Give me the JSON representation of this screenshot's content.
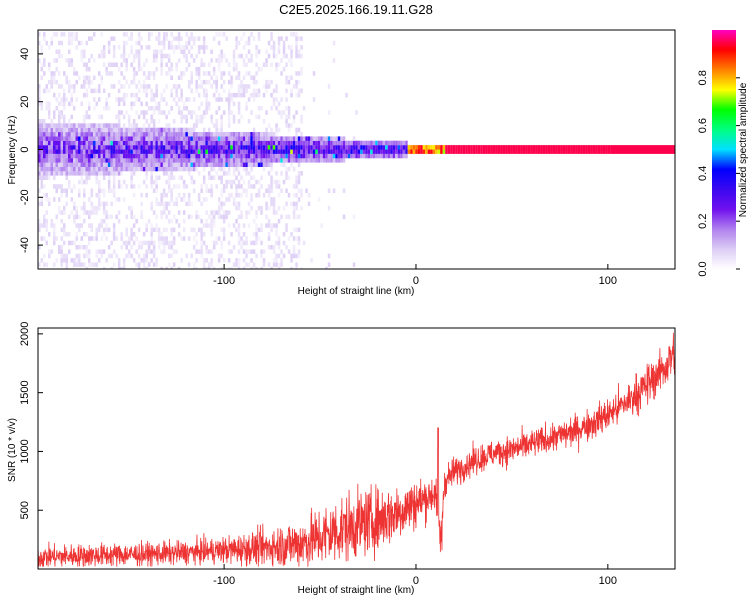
{
  "figure": {
    "title": "C2E5.2025.166.19.11.G28"
  },
  "colors": {
    "snr_line": "#ee3333",
    "axis": "#000000",
    "heat_background": "#ffffff",
    "colormap": [
      "#ffffff",
      "#dccdf5",
      "#b080ee",
      "#7010ee",
      "#3a08f0",
      "#0000ff",
      "#00e0ff",
      "#00ff80",
      "#00ff00",
      "#ffff00",
      "#ff8000",
      "#ff0000",
      "#ff00c0"
    ]
  },
  "chart_data": [
    {
      "type": "heatmap",
      "title": "",
      "xlabel": "Height of straight line (km)",
      "ylabel": "Frequency (Hz)",
      "xlim": [
        -197,
        135
      ],
      "ylim": [
        -50,
        50
      ],
      "xticks": [
        {
          "v": -100,
          "label": "-100"
        },
        {
          "v": 0,
          "label": "0"
        },
        {
          "v": 100,
          "label": "100"
        }
      ],
      "yticks": [
        {
          "v": -40,
          "label": "-40"
        },
        {
          "v": -20,
          "label": "-20"
        },
        {
          "v": 0,
          "label": "0"
        },
        {
          "v": 20,
          "label": "20"
        },
        {
          "v": 40,
          "label": "40"
        }
      ],
      "colorbar": {
        "label": "Normalized spectral amplitude",
        "range": [
          0,
          1
        ],
        "ticks": [
          {
            "v": 0.0,
            "label": "0.0"
          },
          {
            "v": 0.2,
            "label": "0.2"
          },
          {
            "v": 0.4,
            "label": "0.4"
          },
          {
            "v": 0.6,
            "label": "0.6"
          },
          {
            "v": 0.8,
            "label": "0.8"
          }
        ]
      },
      "structure": {
        "carrier_frequency_hz": 0,
        "stable_from_km": -5,
        "core_amplitude_stable": 0.95,
        "core_amplitude_near_origin": 0.55,
        "noisy_region_km": [
          -197,
          -30
        ],
        "noise_band_halfwidth_hz": 12,
        "scatter_extent_hz": 50,
        "scatter_fades_by_km": -60
      }
    },
    {
      "type": "line",
      "title": "",
      "xlabel": "Height of straight line (km)",
      "ylabel": "SNR (10 * v/v)",
      "xlim": [
        -197,
        135
      ],
      "ylim": [
        0,
        2050
      ],
      "xticks": [
        {
          "v": -100,
          "label": "-100"
        },
        {
          "v": 0,
          "label": "0"
        },
        {
          "v": 100,
          "label": "100"
        }
      ],
      "yticks": [
        {
          "v": 500,
          "label": "500"
        },
        {
          "v": 1000,
          "label": "1000"
        },
        {
          "v": 1500,
          "label": "1500"
        },
        {
          "v": 2000,
          "label": "2000"
        }
      ],
      "series": [
        {
          "x": [
            -197,
            -180,
            -160,
            -140,
            -120,
            -100,
            -80,
            -60,
            -50,
            -40,
            -30,
            -20,
            -10,
            0,
            5,
            10,
            13,
            15,
            20,
            30,
            40,
            50,
            60,
            70,
            80,
            90,
            100,
            110,
            120,
            130,
            135
          ],
          "y": [
            100,
            110,
            120,
            125,
            140,
            160,
            180,
            220,
            270,
            330,
            380,
            420,
            480,
            560,
            600,
            650,
            300,
            750,
            830,
            920,
            980,
            1020,
            1060,
            1110,
            1160,
            1230,
            1310,
            1420,
            1560,
            1720,
            1850
          ],
          "noise": [
            70,
            70,
            70,
            70,
            70,
            80,
            110,
            150,
            180,
            200,
            200,
            190,
            170,
            150,
            130,
            110,
            120,
            90,
            85,
            85,
            85,
            85,
            85,
            85,
            90,
            95,
            100,
            110,
            120,
            130,
            140
          ]
        }
      ]
    }
  ]
}
